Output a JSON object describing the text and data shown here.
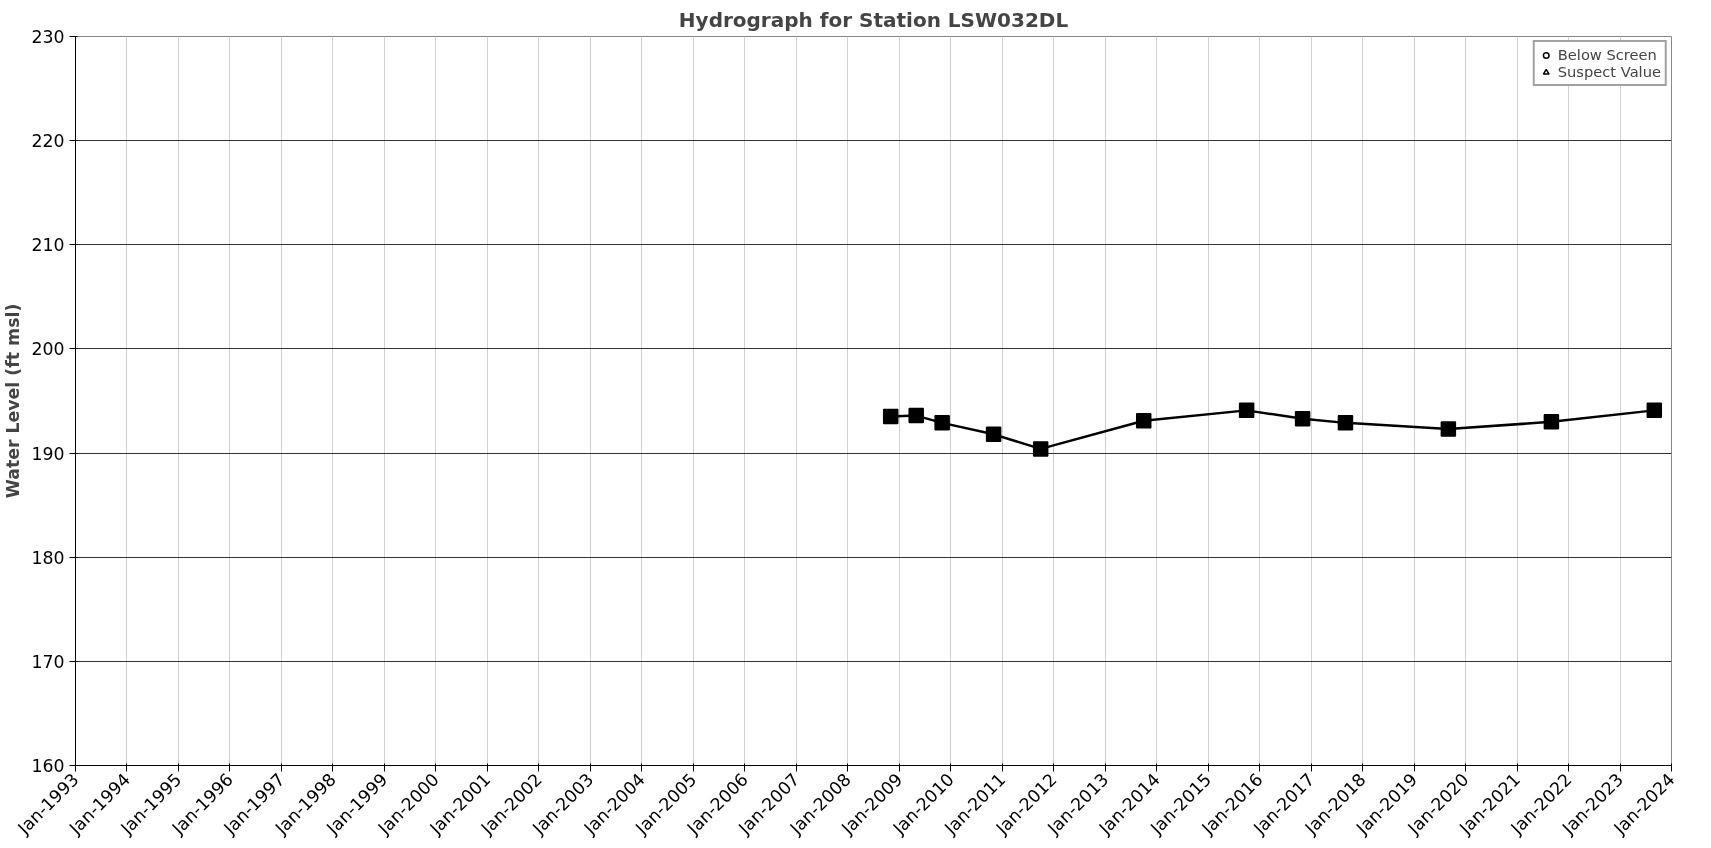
{
  "chart_data": {
    "type": "line",
    "title": "Hydrograph for Station LSW032DL",
    "ylabel": "Water Level (ft msl)",
    "x": [
      "2008-11",
      "2009-05",
      "2009-11",
      "2010-11",
      "2011-10",
      "2013-10",
      "2015-10",
      "2016-11",
      "2017-09",
      "2019-09",
      "2021-09",
      "2023-09"
    ],
    "series": [
      {
        "color": "#000000",
        "marker": "square",
        "values": [
          193.5,
          193.6,
          192.9,
          191.8,
          190.4,
          193.1,
          194.1,
          193.3,
          192.9,
          192.3,
          193.0,
          194.1
        ]
      },
      {
        "name": "Below Screen",
        "color": "#000000",
        "marker": "circle",
        "values": [
          null,
          null,
          null,
          null,
          null,
          null,
          null,
          null,
          null,
          null,
          null,
          null
        ]
      },
      {
        "name": "Suspect Value",
        "color": "#000000",
        "marker": "triangle",
        "values": [
          null,
          null,
          null,
          null,
          null,
          null,
          null,
          null,
          null,
          null,
          null,
          null
        ]
      }
    ],
    "ylim": [
      160,
      230
    ],
    "yticks": [
      160,
      170,
      180,
      190,
      200,
      210,
      220,
      230
    ],
    "xlim": [
      "1993-01",
      "2024-01"
    ],
    "xticks": [
      {
        "value": "1993-01",
        "label": "Jan-1993"
      },
      {
        "value": "1994-01",
        "label": "Jan-1994"
      },
      {
        "value": "1995-01",
        "label": "Jan-1995"
      },
      {
        "value": "1996-01",
        "label": "Jan-1996"
      },
      {
        "value": "1997-01",
        "label": "Jan-1997"
      },
      {
        "value": "1998-01",
        "label": "Jan-1998"
      },
      {
        "value": "1999-01",
        "label": "Jan-1999"
      },
      {
        "value": "2000-01",
        "label": "Jan-2000"
      },
      {
        "value": "2001-01",
        "label": "Jan-2001"
      },
      {
        "value": "2002-01",
        "label": "Jan-2002"
      },
      {
        "value": "2003-01",
        "label": "Jan-2003"
      },
      {
        "value": "2004-01",
        "label": "Jan-2004"
      },
      {
        "value": "2005-01",
        "label": "Jan-2005"
      },
      {
        "value": "2006-01",
        "label": "Jan-2006"
      },
      {
        "value": "2007-01",
        "label": "Jan-2007"
      },
      {
        "value": "2008-01",
        "label": "Jan-2008"
      },
      {
        "value": "2009-01",
        "label": "Jan-2009"
      },
      {
        "value": "2010-01",
        "label": "Jan-2010"
      },
      {
        "value": "2011-01",
        "label": "Jan-2011"
      },
      {
        "value": "2012-01",
        "label": "Jan-2012"
      },
      {
        "value": "2013-01",
        "label": "Jan-2013"
      },
      {
        "value": "2014-01",
        "label": "Jan-2014"
      },
      {
        "value": "2015-01",
        "label": "Jan-2015"
      },
      {
        "value": "2016-01",
        "label": "Jan-2016"
      },
      {
        "value": "2017-01",
        "label": "Jan-2017"
      },
      {
        "value": "2018-01",
        "label": "Jan-2018"
      },
      {
        "value": "2019-01",
        "label": "Jan-2019"
      },
      {
        "value": "2020-01",
        "label": "Jan-2020"
      },
      {
        "value": "2021-01",
        "label": "Jan-2021"
      },
      {
        "value": "2022-01",
        "label": "Jan-2022"
      },
      {
        "value": "2023-01",
        "label": "Jan-2023"
      },
      {
        "value": "2024-01",
        "label": "Jan-2024"
      }
    ],
    "grid": true,
    "legend": "top right",
    "line_style": "solid"
  }
}
